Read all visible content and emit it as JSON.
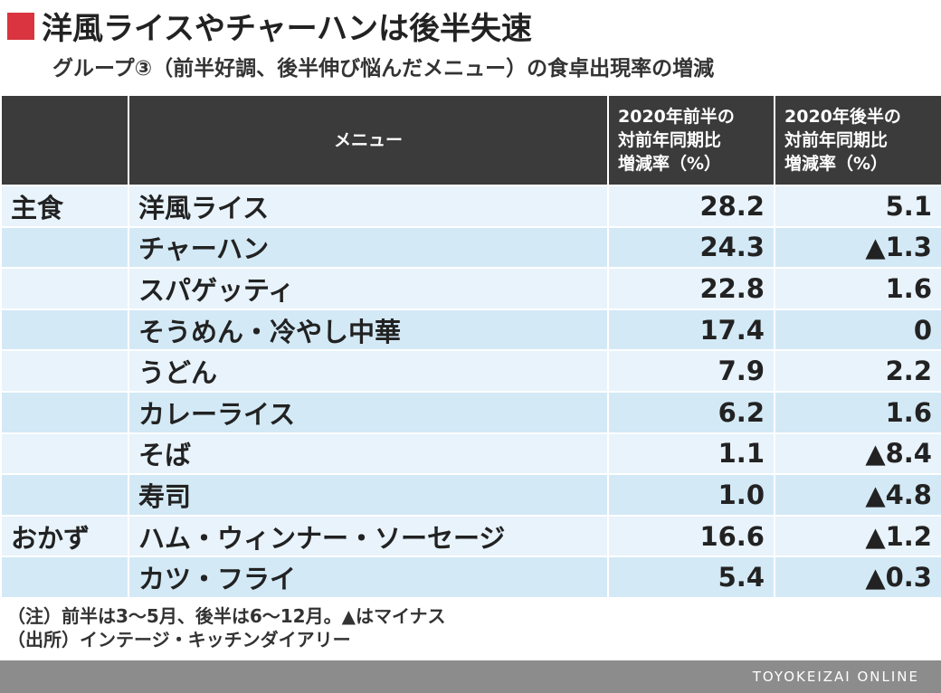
{
  "header": {
    "title": "洋風ライスやチャーハンは後半失速",
    "subtitle": "グループ③（前半好調、後半伸び悩んだメニュー）の食卓出現率の増減"
  },
  "table": {
    "columns": [
      "メニュー",
      [
        "2020年前半の",
        "対前年同期比",
        "増減率（%）"
      ],
      [
        "2020年後半の",
        "対前年同期比",
        "増減率（%）"
      ]
    ],
    "groups": [
      {
        "label": "主食",
        "rows": [
          [
            "洋風ライス",
            "28.2",
            "5.1"
          ],
          [
            "チャーハン",
            "24.3",
            "▲1.3"
          ],
          [
            "スパゲッティ",
            "22.8",
            "1.6"
          ],
          [
            "そうめん・冷やし中華",
            "17.4",
            "0"
          ],
          [
            "うどん",
            "7.9",
            "2.2"
          ],
          [
            "カレーライス",
            "6.2",
            "1.6"
          ],
          [
            "そば",
            "1.1",
            "▲8.4"
          ],
          [
            "寿司",
            "1.0",
            "▲4.8"
          ]
        ]
      },
      {
        "label": "おかず",
        "rows": [
          [
            "ハム・ウィンナー・ソーセージ",
            "16.6",
            "▲1.2"
          ],
          [
            "カツ・フライ",
            "5.4",
            "▲0.3"
          ]
        ]
      }
    ]
  },
  "notes": [
    "（注）前半は3～5月、後半は6～12月。▲はマイナス",
    "（出所）インテージ・キッチンダイアリー"
  ],
  "footer": "TOYOKEIZAI ONLINE"
}
